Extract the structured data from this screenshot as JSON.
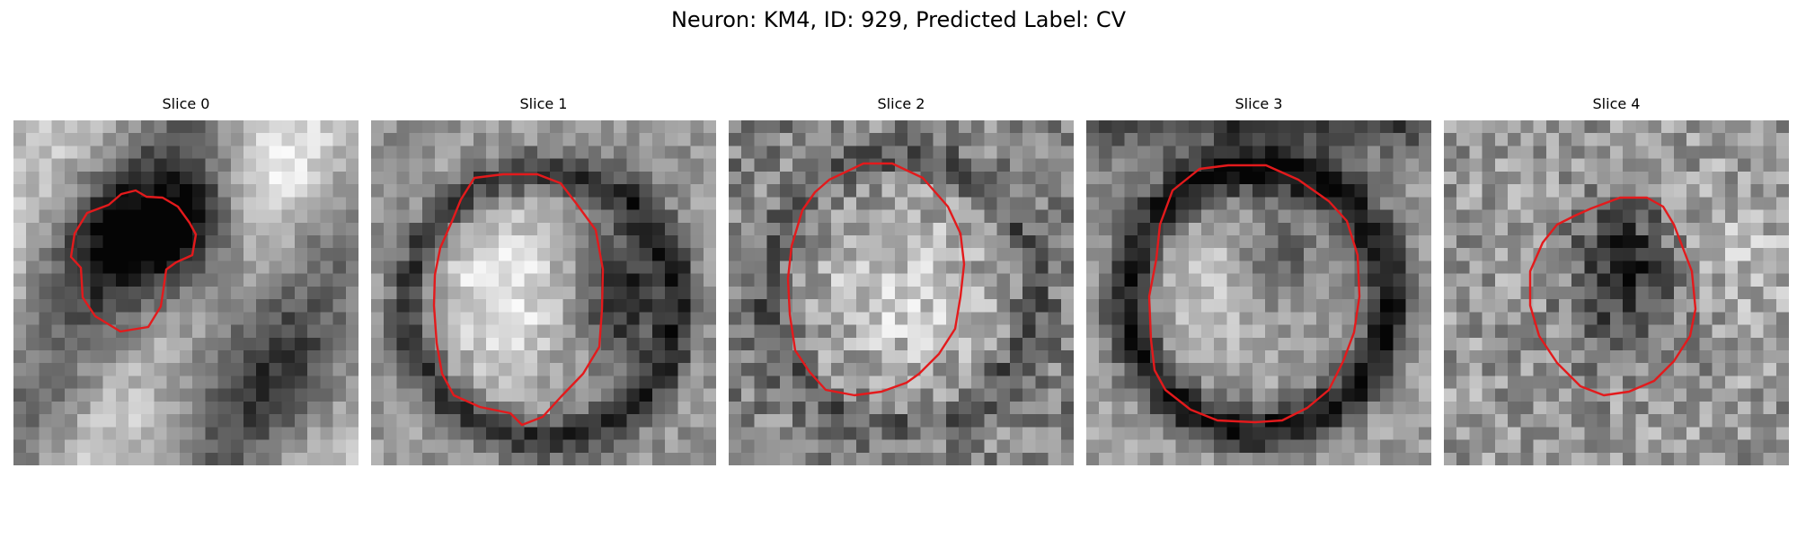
{
  "figure": {
    "title": "Neuron: KM4, ID: 929, Predicted Label: CV"
  },
  "panels": [
    {
      "title": "Slice 0",
      "image_description": "grayscale cell patch with dark blob enclosed by contour",
      "contour_color": "#e31a1c"
    },
    {
      "title": "Slice 1",
      "image_description": "grayscale cell patch with bright nucleus inside dark ring",
      "contour_color": "#e31a1c"
    },
    {
      "title": "Slice 2",
      "image_description": "grayscale cell patch with bright textured interior",
      "contour_color": "#e31a1c"
    },
    {
      "title": "Slice 3",
      "image_description": "grayscale cell patch with bright interior surrounded by thick dark ring",
      "contour_color": "#e31a1c"
    },
    {
      "title": "Slice 4",
      "image_description": "grayscale cell patch with dark center on noisy light background",
      "contour_color": "#e31a1c"
    }
  ]
}
